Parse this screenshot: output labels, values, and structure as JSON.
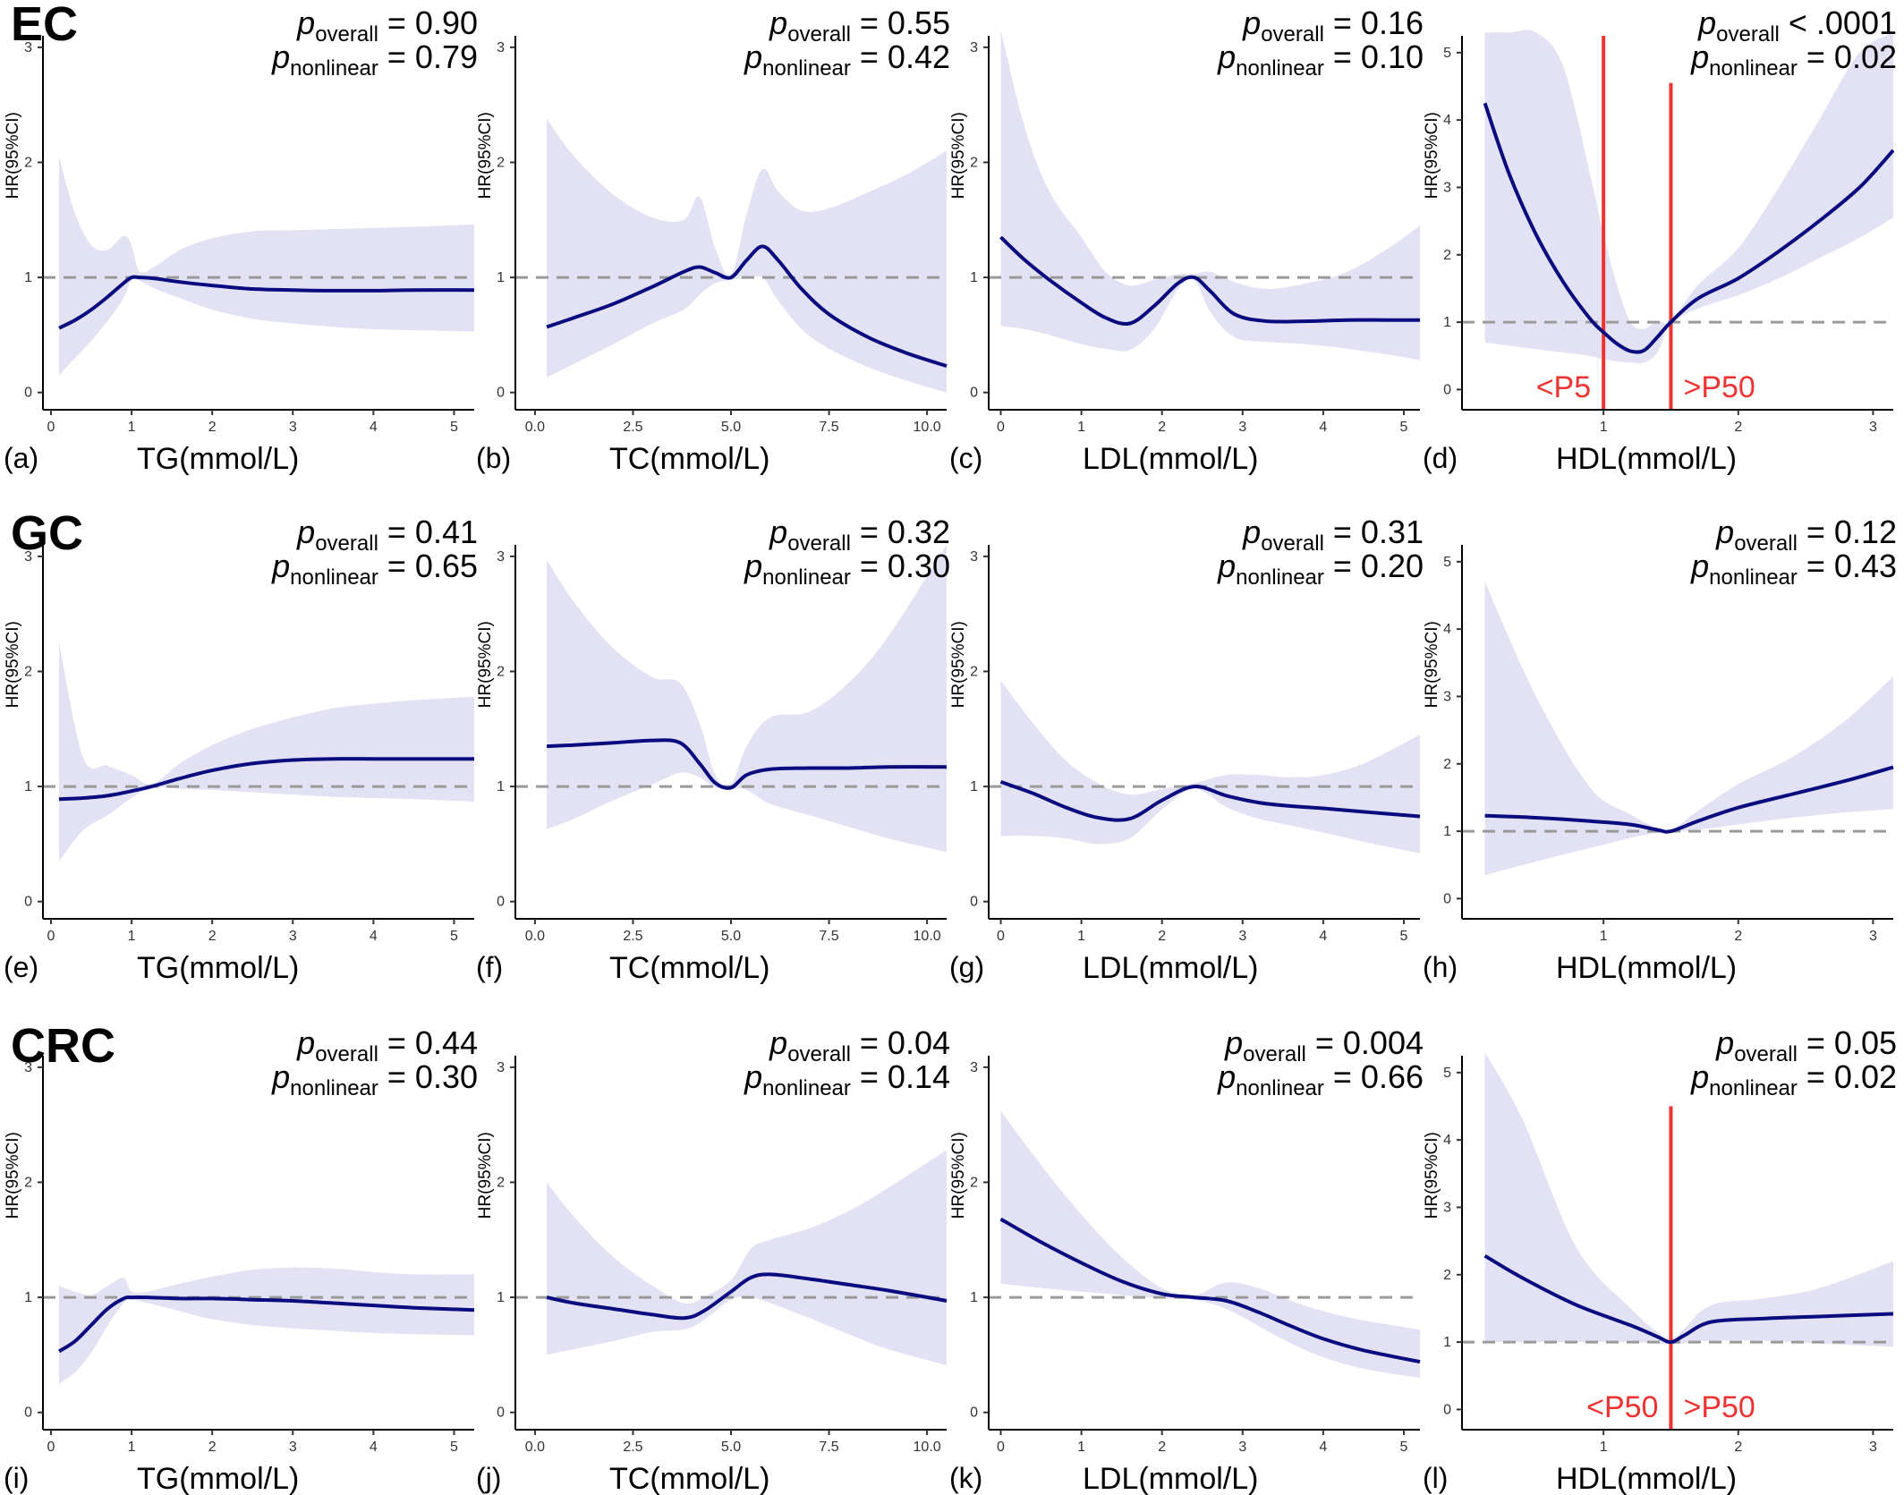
{
  "figure": {
    "row_labels": [
      "EC",
      "GC",
      "CRC"
    ],
    "ylabel": "HR(95%CI)",
    "p_letter": "p",
    "p_overall_sub": "overall",
    "p_nonlinear_sub": "nonlinear"
  },
  "colors": {
    "curve": "#0b0b80",
    "ci_band": "#e2e2f4",
    "reference": "#9a9a9a",
    "vline": "#ee3333",
    "vline_text": "#ee3333"
  },
  "chart_data": [
    {
      "id": "a",
      "type": "line",
      "row": "EC",
      "tag": "(a)",
      "xlabel": "TG(mmol/L)",
      "ylabel": "HR(95%CI)",
      "xlim": [
        -0.1,
        5.25
      ],
      "ylim": [
        -0.15,
        3.1
      ],
      "xticks": [
        0,
        1,
        2,
        3,
        4,
        5
      ],
      "xtick_labels": [
        "0",
        "1",
        "2",
        "3",
        "4",
        "5"
      ],
      "yticks": [
        0,
        1,
        2,
        3
      ],
      "ytick_labels": [
        "0",
        "1",
        "2",
        "3"
      ],
      "p_overall": "= 0.90",
      "p_nonlinear": "= 0.79",
      "reference": 1,
      "x": [
        0.1,
        0.3,
        0.5,
        0.7,
        0.9,
        1.0,
        1.1,
        1.3,
        1.6,
        2.0,
        2.5,
        3.0,
        3.5,
        4.0,
        4.5,
        5.25
      ],
      "y": [
        0.56,
        0.63,
        0.72,
        0.83,
        0.95,
        1.0,
        1.0,
        0.99,
        0.96,
        0.93,
        0.9,
        0.89,
        0.885,
        0.885,
        0.89,
        0.89
      ],
      "lower": [
        0.15,
        0.3,
        0.45,
        0.62,
        0.82,
        0.98,
        0.97,
        0.9,
        0.82,
        0.72,
        0.64,
        0.6,
        0.57,
        0.55,
        0.54,
        0.53
      ],
      "upper": [
        2.05,
        1.55,
        1.28,
        1.24,
        1.36,
        1.28,
        1.05,
        1.1,
        1.24,
        1.34,
        1.4,
        1.41,
        1.42,
        1.43,
        1.44,
        1.46
      ],
      "vlines": []
    },
    {
      "id": "b",
      "type": "line",
      "row": "EC",
      "tag": "(b)",
      "xlabel": "TC(mmol/L)",
      "ylabel": "HR(95%CI)",
      "xlim": [
        -0.5,
        10.5
      ],
      "ylim": [
        -0.15,
        3.1
      ],
      "xticks": [
        0,
        2.5,
        5,
        7.5,
        10
      ],
      "xtick_labels": [
        "0.0",
        "2.5",
        "5.0",
        "7.5",
        "10.0"
      ],
      "yticks": [
        0,
        1,
        2,
        3
      ],
      "ytick_labels": [
        "0",
        "1",
        "2",
        "3"
      ],
      "p_overall": "= 0.55",
      "p_nonlinear": "= 0.42",
      "reference": 1,
      "x": [
        0.3,
        1,
        2,
        3,
        3.8,
        4.2,
        4.6,
        5.0,
        5.4,
        5.8,
        6.2,
        6.8,
        7.5,
        8.5,
        9.5,
        10.5
      ],
      "y": [
        0.57,
        0.65,
        0.77,
        0.92,
        1.05,
        1.09,
        1.04,
        1.0,
        1.15,
        1.27,
        1.15,
        0.9,
        0.68,
        0.48,
        0.34,
        0.23
      ],
      "lower": [
        0.13,
        0.25,
        0.42,
        0.6,
        0.72,
        0.85,
        0.95,
        0.98,
        0.99,
        1.0,
        0.8,
        0.55,
        0.38,
        0.22,
        0.1,
        0.0
      ],
      "upper": [
        2.38,
        2.05,
        1.72,
        1.52,
        1.5,
        1.7,
        1.25,
        1.02,
        1.55,
        1.94,
        1.75,
        1.58,
        1.6,
        1.74,
        1.9,
        2.1
      ],
      "vlines": []
    },
    {
      "id": "c",
      "type": "line",
      "row": "EC",
      "tag": "(c)",
      "xlabel": "LDL(mmol/L)",
      "ylabel": "HR(95%CI)",
      "xlim": [
        -0.15,
        5.2
      ],
      "ylim": [
        -0.15,
        3.1
      ],
      "xticks": [
        0,
        1,
        2,
        3,
        4,
        5
      ],
      "xtick_labels": [
        "0",
        "1",
        "2",
        "3",
        "4",
        "5"
      ],
      "yticks": [
        0,
        1,
        2,
        3
      ],
      "ytick_labels": [
        "0",
        "1",
        "2",
        "3"
      ],
      "p_overall": "= 0.16",
      "p_nonlinear": "= 0.10",
      "reference": 1,
      "x": [
        0,
        0.3,
        0.6,
        1.0,
        1.3,
        1.6,
        1.9,
        2.2,
        2.4,
        2.6,
        2.9,
        3.3,
        3.8,
        4.3,
        4.8,
        5.2
      ],
      "y": [
        1.35,
        1.15,
        0.98,
        0.78,
        0.65,
        0.6,
        0.75,
        0.95,
        1.0,
        0.88,
        0.68,
        0.62,
        0.62,
        0.63,
        0.63,
        0.63
      ],
      "lower": [
        0.58,
        0.55,
        0.5,
        0.42,
        0.38,
        0.37,
        0.55,
        0.9,
        0.98,
        0.7,
        0.48,
        0.44,
        0.42,
        0.38,
        0.33,
        0.28
      ],
      "upper": [
        3.2,
        2.3,
        1.75,
        1.35,
        1.05,
        0.93,
        0.98,
        1.03,
        1.03,
        1.05,
        0.96,
        0.9,
        0.95,
        1.05,
        1.25,
        1.45
      ],
      "vlines": []
    },
    {
      "id": "d",
      "type": "line",
      "row": "EC",
      "tag": "(d)",
      "xlabel": "HDL(mmol/L)",
      "ylabel": "HR(95%CI)",
      "xlim": [
        -0.05,
        3.15
      ],
      "ylim": [
        -0.3,
        5.25
      ],
      "xticks": [
        1,
        2,
        3
      ],
      "xtick_labels": [
        "1",
        "2",
        "3"
      ],
      "yticks": [
        0,
        1,
        2,
        3,
        4,
        5
      ],
      "ytick_labels": [
        "0",
        "1",
        "2",
        "3",
        "4",
        "5"
      ],
      "p_overall": "< .0001",
      "p_nonlinear": "= 0.02",
      "reference": 1,
      "x": [
        0.12,
        0.3,
        0.5,
        0.7,
        0.9,
        1.0,
        1.1,
        1.2,
        1.3,
        1.4,
        1.5,
        1.7,
        2.0,
        2.3,
        2.6,
        2.9,
        3.15
      ],
      "y": [
        4.25,
        3.2,
        2.3,
        1.6,
        1.05,
        0.85,
        0.68,
        0.57,
        0.58,
        0.78,
        1.0,
        1.35,
        1.65,
        2.05,
        2.5,
        3.0,
        3.55
      ],
      "lower": [
        0.7,
        0.65,
        0.6,
        0.55,
        0.5,
        0.45,
        0.42,
        0.4,
        0.4,
        0.55,
        0.98,
        1.2,
        1.4,
        1.65,
        1.95,
        2.25,
        2.55
      ],
      "upper": [
        5.4,
        5.4,
        5.4,
        4.8,
        3.2,
        2.3,
        1.55,
        1.0,
        0.9,
        1.02,
        1.02,
        1.55,
        2.1,
        3.0,
        4.0,
        5.0,
        5.4
      ],
      "vlines": [
        {
          "x": 1.0,
          "top": 5.25,
          "label": "<P5",
          "label_side": "left"
        },
        {
          "x": 1.5,
          "top": 4.55,
          "label": ">P50",
          "label_side": "right"
        }
      ]
    },
    {
      "id": "e",
      "type": "line",
      "row": "GC",
      "tag": "(e)",
      "xlabel": "TG(mmol/L)",
      "ylabel": "HR(95%CI)",
      "xlim": [
        -0.1,
        5.25
      ],
      "ylim": [
        -0.15,
        3.1
      ],
      "xticks": [
        0,
        1,
        2,
        3,
        4,
        5
      ],
      "xtick_labels": [
        "0",
        "1",
        "2",
        "3",
        "4",
        "5"
      ],
      "yticks": [
        0,
        1,
        2,
        3
      ],
      "ytick_labels": [
        "0",
        "1",
        "2",
        "3"
      ],
      "p_overall": "= 0.41",
      "p_nonlinear": "= 0.65",
      "reference": 1,
      "x": [
        0.1,
        0.4,
        0.7,
        1.0,
        1.25,
        1.6,
        2.0,
        2.5,
        3.0,
        3.5,
        4.0,
        4.5,
        5.25
      ],
      "y": [
        0.89,
        0.9,
        0.92,
        0.96,
        1.0,
        1.07,
        1.14,
        1.2,
        1.23,
        1.24,
        1.24,
        1.24,
        1.24
      ],
      "lower": [
        0.35,
        0.62,
        0.75,
        0.9,
        0.99,
        0.98,
        0.97,
        0.95,
        0.93,
        0.91,
        0.9,
        0.89,
        0.87
      ],
      "upper": [
        2.25,
        1.25,
        1.18,
        1.1,
        1.02,
        1.2,
        1.36,
        1.5,
        1.6,
        1.68,
        1.72,
        1.75,
        1.78
      ],
      "vlines": []
    },
    {
      "id": "f",
      "type": "line",
      "row": "GC",
      "tag": "(f)",
      "xlabel": "TC(mmol/L)",
      "ylabel": "HR(95%CI)",
      "xlim": [
        -0.5,
        10.5
      ],
      "ylim": [
        -0.15,
        3.1
      ],
      "xticks": [
        0,
        2.5,
        5,
        7.5,
        10
      ],
      "xtick_labels": [
        "0.0",
        "2.5",
        "5.0",
        "7.5",
        "10.0"
      ],
      "yticks": [
        0,
        1,
        2,
        3
      ],
      "ytick_labels": [
        "0",
        "1",
        "2",
        "3"
      ],
      "p_overall": "= 0.32",
      "p_nonlinear": "= 0.30",
      "reference": 1,
      "x": [
        0.3,
        1,
        2,
        3,
        3.7,
        4.2,
        4.6,
        5.0,
        5.4,
        6,
        7,
        8,
        9,
        10.5
      ],
      "y": [
        1.35,
        1.36,
        1.38,
        1.4,
        1.38,
        1.2,
        1.03,
        0.99,
        1.1,
        1.15,
        1.16,
        1.16,
        1.17,
        1.17
      ],
      "lower": [
        0.63,
        0.72,
        0.88,
        1.02,
        1.12,
        1.08,
        0.99,
        0.98,
        0.97,
        0.85,
        0.75,
        0.65,
        0.55,
        0.43
      ],
      "upper": [
        2.97,
        2.6,
        2.2,
        1.95,
        1.9,
        1.55,
        1.1,
        1.02,
        1.35,
        1.6,
        1.65,
        1.9,
        2.3,
        3.1
      ],
      "vlines": []
    },
    {
      "id": "g",
      "type": "line",
      "row": "GC",
      "tag": "(g)",
      "xlabel": "LDL(mmol/L)",
      "ylabel": "HR(95%CI)",
      "xlim": [
        -0.15,
        5.2
      ],
      "ylim": [
        -0.15,
        3.1
      ],
      "xticks": [
        0,
        1,
        2,
        3,
        4,
        5
      ],
      "xtick_labels": [
        "0",
        "1",
        "2",
        "3",
        "4",
        "5"
      ],
      "yticks": [
        0,
        1,
        2,
        3
      ],
      "ytick_labels": [
        "0",
        "1",
        "2",
        "3"
      ],
      "p_overall": "= 0.31",
      "p_nonlinear": "= 0.20",
      "reference": 1,
      "x": [
        0,
        0.4,
        0.8,
        1.2,
        1.6,
        2.0,
        2.4,
        2.8,
        3.2,
        3.6,
        4.0,
        4.5,
        5.2
      ],
      "y": [
        1.04,
        0.94,
        0.82,
        0.73,
        0.72,
        0.88,
        1.0,
        0.92,
        0.86,
        0.83,
        0.81,
        0.78,
        0.74
      ],
      "lower": [
        0.57,
        0.57,
        0.55,
        0.5,
        0.55,
        0.8,
        0.98,
        0.82,
        0.72,
        0.66,
        0.6,
        0.52,
        0.42
      ],
      "upper": [
        1.92,
        1.55,
        1.23,
        1.03,
        0.93,
        0.98,
        1.03,
        1.1,
        1.1,
        1.08,
        1.1,
        1.2,
        1.45
      ],
      "vlines": []
    },
    {
      "id": "h",
      "type": "line",
      "row": "GC",
      "tag": "(h)",
      "xlabel": "HDL(mmol/L)",
      "ylabel": "HR(95%CI)",
      "xlim": [
        -0.05,
        3.15
      ],
      "ylim": [
        -0.3,
        5.25
      ],
      "xticks": [
        1,
        2,
        3
      ],
      "xtick_labels": [
        "1",
        "2",
        "3"
      ],
      "yticks": [
        0,
        1,
        2,
        3,
        4,
        5
      ],
      "ytick_labels": [
        "0",
        "1",
        "2",
        "3",
        "4",
        "5"
      ],
      "p_overall": "= 0.12",
      "p_nonlinear": "= 0.43",
      "reference": 1,
      "x": [
        0.12,
        0.5,
        0.9,
        1.2,
        1.4,
        1.5,
        1.7,
        2.0,
        2.4,
        2.8,
        3.15
      ],
      "y": [
        1.23,
        1.2,
        1.15,
        1.1,
        1.02,
        1.0,
        1.15,
        1.35,
        1.55,
        1.75,
        1.95
      ],
      "lower": [
        0.35,
        0.55,
        0.75,
        0.9,
        0.98,
        0.99,
        1.02,
        1.1,
        1.2,
        1.28,
        1.33
      ],
      "upper": [
        4.7,
        3.0,
        1.65,
        1.25,
        1.05,
        1.02,
        1.3,
        1.7,
        2.1,
        2.65,
        3.3
      ],
      "vlines": []
    },
    {
      "id": "i",
      "type": "line",
      "row": "CRC",
      "tag": "(i)",
      "xlabel": "TG(mmol/L)",
      "ylabel": "HR(95%CI)",
      "xlim": [
        -0.1,
        5.25
      ],
      "ylim": [
        -0.15,
        3.1
      ],
      "xticks": [
        0,
        1,
        2,
        3,
        4,
        5
      ],
      "xtick_labels": [
        "0",
        "1",
        "2",
        "3",
        "4",
        "5"
      ],
      "yticks": [
        0,
        1,
        2,
        3
      ],
      "ytick_labels": [
        "0",
        "1",
        "2",
        "3"
      ],
      "p_overall": "= 0.44",
      "p_nonlinear": "= 0.30",
      "reference": 1,
      "x": [
        0.1,
        0.3,
        0.5,
        0.7,
        0.9,
        1.0,
        1.2,
        1.6,
        2.0,
        2.5,
        3.0,
        3.5,
        4.0,
        4.5,
        5.25
      ],
      "y": [
        0.53,
        0.62,
        0.76,
        0.9,
        0.99,
        1.0,
        1.0,
        0.99,
        0.99,
        0.98,
        0.97,
        0.95,
        0.93,
        0.91,
        0.89
      ],
      "lower": [
        0.25,
        0.35,
        0.52,
        0.75,
        0.95,
        0.98,
        0.95,
        0.88,
        0.81,
        0.76,
        0.73,
        0.71,
        0.69,
        0.68,
        0.67
      ],
      "upper": [
        1.1,
        1.05,
        1.02,
        1.1,
        1.17,
        1.05,
        1.05,
        1.12,
        1.18,
        1.24,
        1.26,
        1.25,
        1.22,
        1.2,
        1.2
      ],
      "vlines": []
    },
    {
      "id": "j",
      "type": "line",
      "row": "CRC",
      "tag": "(j)",
      "xlabel": "TC(mmol/L)",
      "ylabel": "HR(95%CI)",
      "xlim": [
        -0.5,
        10.5
      ],
      "ylim": [
        -0.15,
        3.1
      ],
      "xticks": [
        0,
        2.5,
        5,
        7.5,
        10
      ],
      "xtick_labels": [
        "0.0",
        "2.5",
        "5.0",
        "7.5",
        "10.0"
      ],
      "yticks": [
        0,
        1,
        2,
        3
      ],
      "ytick_labels": [
        "0",
        "1",
        "2",
        "3"
      ],
      "p_overall": "= 0.04",
      "p_nonlinear": "= 0.14",
      "reference": 1,
      "x": [
        0.3,
        1,
        2,
        3,
        3.8,
        4.3,
        5.0,
        5.5,
        6.0,
        7.0,
        8.0,
        9.0,
        10.5
      ],
      "y": [
        1.0,
        0.95,
        0.9,
        0.85,
        0.82,
        0.88,
        1.05,
        1.17,
        1.2,
        1.16,
        1.11,
        1.06,
        0.97
      ],
      "lower": [
        0.5,
        0.55,
        0.62,
        0.7,
        0.72,
        0.8,
        0.98,
        1.0,
        0.95,
        0.82,
        0.68,
        0.55,
        0.41
      ],
      "upper": [
        2.0,
        1.7,
        1.35,
        1.1,
        0.95,
        1.0,
        1.15,
        1.42,
        1.5,
        1.6,
        1.75,
        1.95,
        2.28
      ],
      "vlines": []
    },
    {
      "id": "k",
      "type": "line",
      "row": "CRC",
      "tag": "(k)",
      "xlabel": "LDL(mmol/L)",
      "ylabel": "HR(95%CI)",
      "xlim": [
        -0.15,
        5.2
      ],
      "ylim": [
        -0.15,
        3.1
      ],
      "xticks": [
        0,
        1,
        2,
        3,
        4,
        5
      ],
      "xtick_labels": [
        "0",
        "1",
        "2",
        "3",
        "4",
        "5"
      ],
      "yticks": [
        0,
        1,
        2,
        3
      ],
      "ytick_labels": [
        "0",
        "1",
        "2",
        "3"
      ],
      "p_overall": "= 0.004",
      "p_nonlinear": "= 0.66",
      "reference": 1,
      "x": [
        0,
        0.5,
        1.0,
        1.5,
        2.0,
        2.4,
        2.8,
        3.2,
        3.6,
        4.0,
        4.5,
        5.2
      ],
      "y": [
        1.68,
        1.48,
        1.3,
        1.14,
        1.03,
        1.0,
        0.97,
        0.87,
        0.75,
        0.64,
        0.54,
        0.44
      ],
      "lower": [
        1.12,
        1.08,
        1.05,
        1.02,
        0.99,
        0.98,
        0.9,
        0.75,
        0.6,
        0.48,
        0.38,
        0.3
      ],
      "upper": [
        2.62,
        2.15,
        1.72,
        1.35,
        1.08,
        1.02,
        1.13,
        1.08,
        0.97,
        0.88,
        0.8,
        0.72
      ],
      "vlines": []
    },
    {
      "id": "l",
      "type": "line",
      "row": "CRC",
      "tag": "(l)",
      "xlabel": "HDL(mmol/L)",
      "ylabel": "HR(95%CI)",
      "xlim": [
        -0.05,
        3.15
      ],
      "ylim": [
        -0.3,
        5.25
      ],
      "xticks": [
        1,
        2,
        3
      ],
      "xtick_labels": [
        "1",
        "2",
        "3"
      ],
      "yticks": [
        0,
        1,
        2,
        3,
        4,
        5
      ],
      "ytick_labels": [
        "0",
        "1",
        "2",
        "3",
        "4",
        "5"
      ],
      "p_overall": "= 0.05",
      "p_nonlinear": "= 0.02",
      "reference": 1,
      "x": [
        0.12,
        0.4,
        0.8,
        1.2,
        1.4,
        1.5,
        1.6,
        1.8,
        2.2,
        2.6,
        3.15
      ],
      "y": [
        2.28,
        1.95,
        1.55,
        1.25,
        1.08,
        1.0,
        1.1,
        1.3,
        1.35,
        1.38,
        1.42
      ],
      "lower": [
        1.0,
        1.0,
        1.0,
        1.0,
        0.98,
        0.97,
        0.98,
        1.02,
        1.02,
        0.98,
        0.93
      ],
      "upper": [
        5.4,
        4.3,
        2.4,
        1.5,
        1.15,
        1.03,
        1.2,
        1.55,
        1.65,
        1.8,
        2.2
      ],
      "vlines": [
        {
          "x": 1.5,
          "top": 4.5,
          "label": "<P50",
          "label_side": "left"
        },
        {
          "x": 1.5,
          "top": 4.5,
          "label": ">P50",
          "label_side": "right",
          "hide_line": true
        }
      ]
    }
  ]
}
